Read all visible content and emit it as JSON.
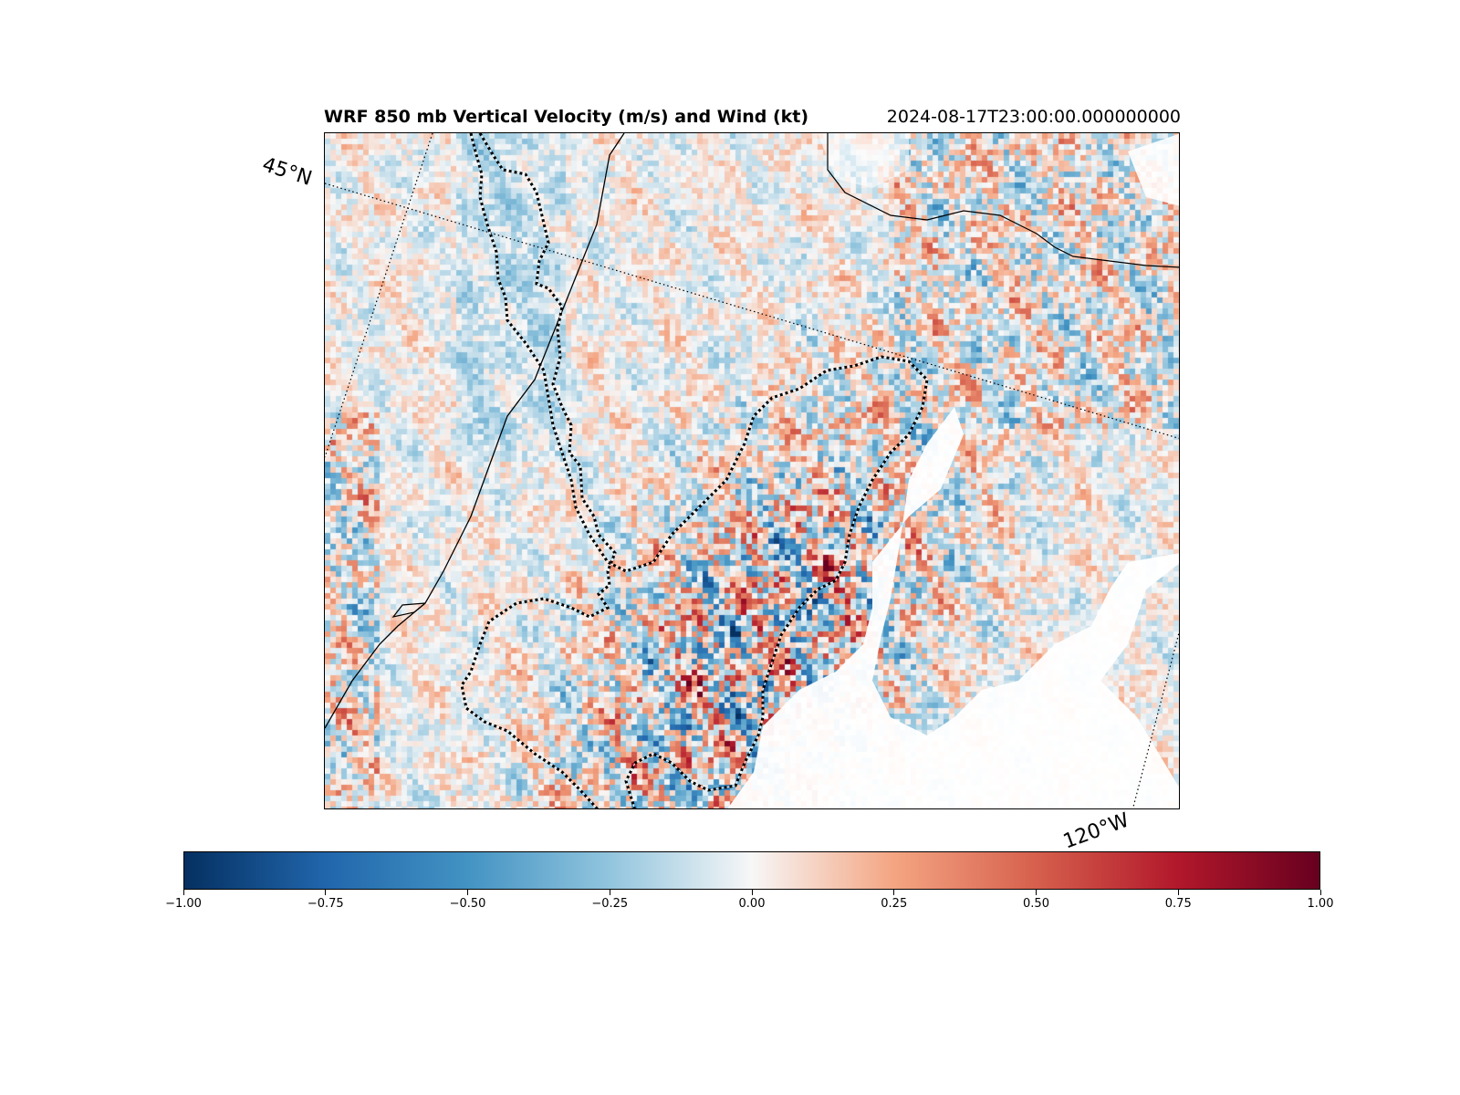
{
  "figure": {
    "title": "WRF 850 mb Vertical Velocity (m/s) and Wind (kt)",
    "timestamp": "2024-08-17T23:00:00.000000000"
  },
  "map": {
    "lat_label": "45°N",
    "lon_label": "120°W",
    "features": [
      "coastline",
      "state-borders",
      "graticule-dotted",
      "dashed-region-outline",
      "no-data-white-area"
    ]
  },
  "chart_data": {
    "type": "heatmap",
    "colormap": "RdBu_r",
    "colorbar": {
      "vmin": -1.0,
      "vmax": 1.0,
      "ticks": [
        -1.0,
        -0.75,
        -0.5,
        -0.25,
        0.0,
        0.25,
        0.5,
        0.75,
        1.0
      ],
      "tick_labels": [
        "−1.00",
        "−0.75",
        "−0.50",
        "−0.25",
        "0.00",
        "0.25",
        "0.50",
        "0.75",
        "1.00"
      ],
      "orientation": "horizontal"
    }
  }
}
